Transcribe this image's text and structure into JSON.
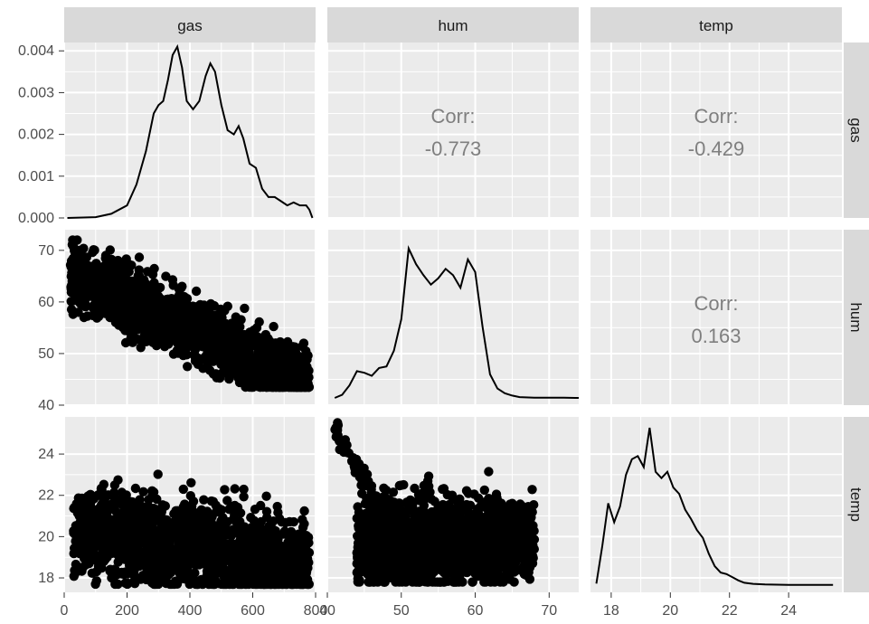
{
  "chart_data": {
    "type": "scatter",
    "plot_kind": "pairs-matrix",
    "variables": [
      "gas",
      "hum",
      "temp"
    ],
    "grid": true,
    "axes": {
      "gas": {
        "lim": [
          0,
          800
        ],
        "ticks": [
          0,
          200,
          400,
          600,
          800
        ],
        "tick_labels": [
          "0",
          "200",
          "400",
          "600",
          "800"
        ]
      },
      "hum": {
        "lim": [
          40,
          74
        ],
        "ticks": [
          40,
          50,
          60,
          70
        ],
        "tick_labels": [
          "40",
          "50",
          "60",
          "70"
        ]
      },
      "temp": {
        "lim": [
          17.3,
          25.8
        ],
        "ticks": [
          18,
          20,
          22,
          24
        ],
        "tick_labels": [
          "18",
          "20",
          "22",
          "24"
        ]
      }
    },
    "density_gas": {
      "ylim": [
        0,
        0.0042
      ],
      "ticks": [
        0,
        0.001,
        0.002,
        0.003,
        0.004
      ],
      "tick_labels": [
        "0.000",
        "0.001",
        "0.002",
        "0.003",
        "0.004"
      ],
      "x": [
        10,
        100,
        150,
        200,
        230,
        260,
        285,
        300,
        315,
        330,
        345,
        360,
        375,
        390,
        410,
        430,
        450,
        465,
        480,
        500,
        520,
        540,
        555,
        570,
        590,
        610,
        630,
        650,
        670,
        690,
        710,
        730,
        750,
        770,
        780,
        790
      ],
      "y": [
        0,
        2e-05,
        0.0001,
        0.0003,
        0.0008,
        0.0016,
        0.0025,
        0.0027,
        0.0028,
        0.0033,
        0.0039,
        0.0041,
        0.0036,
        0.0028,
        0.0026,
        0.0028,
        0.0034,
        0.0037,
        0.0035,
        0.0027,
        0.0021,
        0.002,
        0.0022,
        0.0019,
        0.0013,
        0.0012,
        0.0007,
        0.0005,
        0.0005,
        0.0004,
        0.0003,
        0.00037,
        0.0003,
        0.0003,
        0.0002,
        0
      ]
    },
    "density_hum": {
      "x": [
        41,
        42,
        43,
        44,
        45,
        46,
        47,
        48,
        49,
        50,
        51,
        52,
        53,
        54,
        55,
        56,
        57,
        58,
        59,
        60,
        61,
        62,
        63,
        64,
        65,
        66,
        68,
        70,
        72,
        74
      ],
      "y": [
        0,
        0.02,
        0.08,
        0.17,
        0.16,
        0.14,
        0.19,
        0.2,
        0.3,
        0.5,
        0.95,
        0.85,
        0.78,
        0.72,
        0.76,
        0.82,
        0.78,
        0.7,
        0.88,
        0.8,
        0.45,
        0.15,
        0.06,
        0.03,
        0.015,
        0.005,
        0.002,
        0.001,
        0.001,
        0
      ]
    },
    "density_temp": {
      "x": [
        17.5,
        17.7,
        17.9,
        18.1,
        18.3,
        18.5,
        18.7,
        18.9,
        19.1,
        19.3,
        19.5,
        19.7,
        19.9,
        20.1,
        20.3,
        20.5,
        20.7,
        20.9,
        21.1,
        21.3,
        21.5,
        21.7,
        21.9,
        22.1,
        22.3,
        22.5,
        22.8,
        23.2,
        24,
        25.5
      ],
      "y": [
        0.01,
        0.25,
        0.52,
        0.4,
        0.5,
        0.7,
        0.8,
        0.82,
        0.75,
        1.0,
        0.72,
        0.68,
        0.72,
        0.62,
        0.58,
        0.48,
        0.42,
        0.35,
        0.3,
        0.2,
        0.12,
        0.08,
        0.07,
        0.05,
        0.03,
        0.015,
        0.008,
        0.004,
        0.002,
        0.001
      ]
    },
    "correlations": [
      {
        "row": "gas",
        "col": "hum",
        "label": "Corr:",
        "value": "-0.773"
      },
      {
        "row": "gas",
        "col": "temp",
        "label": "Corr:",
        "value": "-0.429"
      },
      {
        "row": "hum",
        "col": "temp",
        "label": "Corr:",
        "value": "0.163"
      }
    ],
    "colors": {
      "panel_bg": "#ebebeb",
      "strip_bg": "#d9d9d9",
      "grid": "#ffffff",
      "marks": "#000000",
      "corr_text": "#7f7f7f"
    }
  }
}
